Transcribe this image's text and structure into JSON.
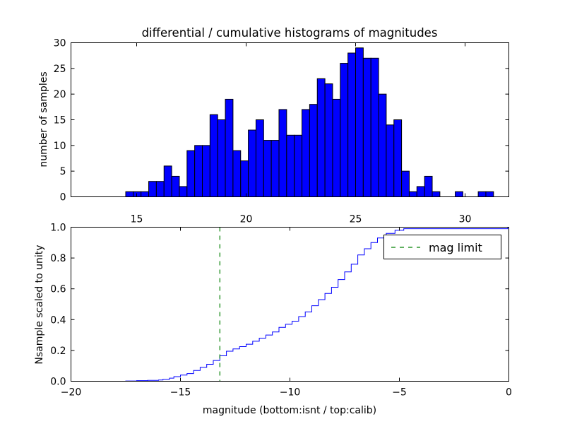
{
  "chart_data": [
    {
      "type": "bar",
      "title": "differential / cumulative histograms of magnitudes",
      "xlabel": "",
      "ylabel": "number of samples",
      "xlim": [
        12,
        32
      ],
      "ylim": [
        0,
        30
      ],
      "xticks": [
        15,
        20,
        25,
        30
      ],
      "yticks": [
        0,
        5,
        10,
        15,
        20,
        25,
        30
      ],
      "bar_color": "#0000ff",
      "bin_start": 14.5,
      "bin_width": 0.35,
      "values": [
        1,
        1,
        1,
        3,
        3,
        6,
        4,
        2,
        9,
        10,
        10,
        16,
        15,
        19,
        9,
        7,
        13,
        15,
        11,
        11,
        17,
        12,
        12,
        17,
        18,
        23,
        22,
        19,
        26,
        28,
        29,
        27,
        27,
        20,
        14,
        15,
        5,
        1,
        2,
        4,
        1,
        0,
        0,
        1,
        0,
        0,
        1,
        1
      ]
    },
    {
      "type": "line",
      "title": "",
      "xlabel": "magnitude (bottom:isnt / top:calib)",
      "ylabel": "Nsample scaled to unity",
      "xlim": [
        -20,
        0
      ],
      "ylim": [
        0,
        1.0
      ],
      "xticks": [
        -20,
        -15,
        -10,
        -5,
        0
      ],
      "yticks": [
        0.0,
        0.2,
        0.4,
        0.6,
        0.8,
        1.0
      ],
      "xtick_labels": [
        "−20",
        "−15",
        "−10",
        "−5",
        "0"
      ],
      "ytick_labels": [
        "0.0",
        "0.2",
        "0.4",
        "0.6",
        "0.8",
        "1.0"
      ],
      "legend": {
        "placement": "top-right",
        "entries": [
          "mag limit"
        ]
      },
      "series": [
        {
          "style": "step",
          "color": "#0000ff",
          "x": [
            -20,
            -17.5,
            -17.0,
            -16.5,
            -16.0,
            -15.8,
            -15.5,
            -15.3,
            -15.0,
            -14.7,
            -14.4,
            -14.1,
            -13.8,
            -13.5,
            -13.2,
            -12.9,
            -12.6,
            -12.3,
            -12.0,
            -11.7,
            -11.4,
            -11.1,
            -10.8,
            -10.5,
            -10.2,
            -9.9,
            -9.6,
            -9.3,
            -9.0,
            -8.7,
            -8.4,
            -8.1,
            -7.8,
            -7.5,
            -7.2,
            -6.9,
            -6.6,
            -6.3,
            -6.0,
            -5.6,
            -5.2,
            -4.8,
            -0.05
          ],
          "y": [
            0.0,
            0.002,
            0.004,
            0.006,
            0.008,
            0.012,
            0.02,
            0.03,
            0.04,
            0.05,
            0.07,
            0.09,
            0.11,
            0.135,
            0.165,
            0.195,
            0.21,
            0.225,
            0.24,
            0.26,
            0.28,
            0.3,
            0.32,
            0.35,
            0.37,
            0.39,
            0.42,
            0.45,
            0.49,
            0.53,
            0.57,
            0.61,
            0.66,
            0.71,
            0.76,
            0.82,
            0.86,
            0.9,
            0.93,
            0.96,
            0.98,
            0.99,
            1.0
          ]
        },
        {
          "name": "mag limit",
          "style": "dashed-vline",
          "color": "#008000",
          "x": -13.2
        }
      ]
    }
  ]
}
